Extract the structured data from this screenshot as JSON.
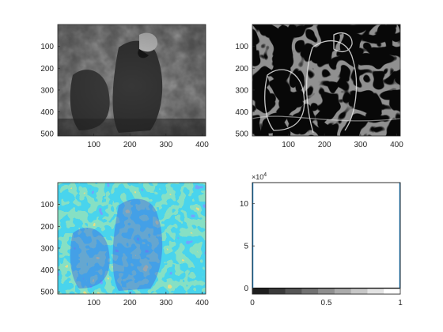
{
  "figure": {
    "panels": [
      {
        "id": "grayscale-parrot",
        "kind": "image",
        "colormap": "gray",
        "xticks": [
          "100",
          "200",
          "300",
          "400"
        ],
        "yticks": [
          "100",
          "200",
          "300",
          "400",
          "500"
        ]
      },
      {
        "id": "gradient-magnitude",
        "kind": "image",
        "colormap": "gray",
        "xticks": [
          "100",
          "200",
          "300",
          "400"
        ],
        "yticks": [
          "100",
          "200",
          "300",
          "400",
          "500"
        ]
      },
      {
        "id": "gradient-direction",
        "kind": "image",
        "colormap": "parula",
        "xticks": [
          "100",
          "200",
          "300",
          "400"
        ],
        "yticks": [
          "100",
          "200",
          "300",
          "400",
          "500"
        ]
      },
      {
        "id": "histogram",
        "kind": "histogram",
        "exponent_label": "×10",
        "exponent_power": "4",
        "xticks": [
          "0",
          "0.5",
          "1"
        ],
        "yticks": [
          "0",
          "5",
          "10"
        ]
      }
    ]
  },
  "colors": {
    "axis": "#262626",
    "parula": [
      "#3e26a8",
      "#2f5ef8",
      "#13a8d9",
      "#3ec08c",
      "#c3b93f",
      "#f9d92a"
    ],
    "histogram_line": "#0072bd"
  },
  "chart_data": {
    "type": "bar",
    "x": [
      0,
      0.5,
      1
    ],
    "xlim": [
      0,
      1
    ],
    "ylim": [
      -0.7,
      12.5
    ],
    "y_scale_multiplier": 10000,
    "colorbar_steps": 9
  }
}
